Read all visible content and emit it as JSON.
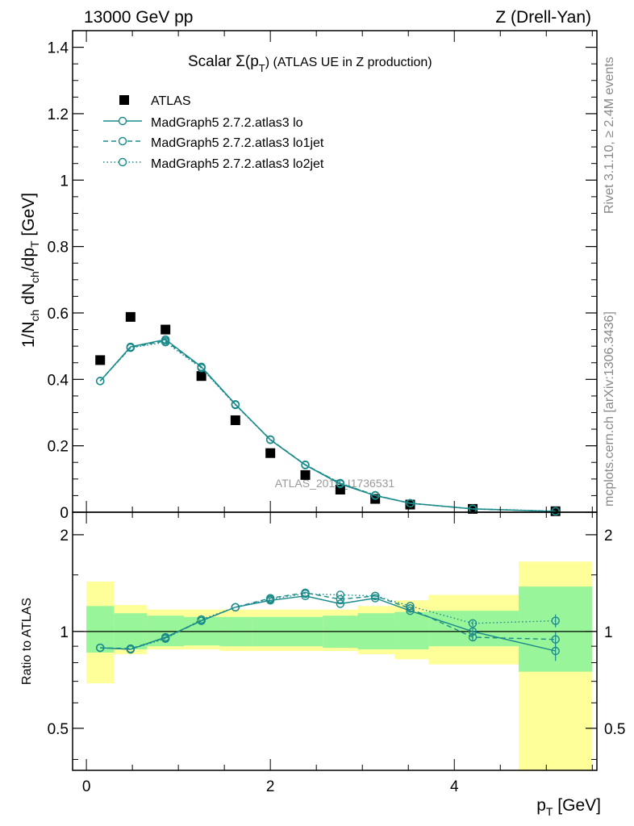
{
  "header": {
    "left": "13000 GeV pp",
    "right": "Z (Drell-Yan)"
  },
  "side": {
    "rivet": "Rivet 3.1.10, ≥ 2.4M events",
    "mcplots": "mcplots.cern.ch [arXiv:1306.3436]"
  },
  "colors": {
    "mc": "#1a8a8a",
    "band_inner": "#99f599",
    "band_outer": "#ffff99",
    "data": "#000000"
  },
  "chart_data": [
    {
      "type": "scatter",
      "panel": "main",
      "title": "Scalar Σ(p_T) (ATLAS UE in Z production)",
      "title_main": "Scalar Σ(p",
      "title_sub": "T",
      "title_rest": ") (ATLAS UE in Z production)",
      "ylabel": "1/N_ch dN_ch/dp_T [GeV]",
      "ylim": [
        0,
        1.45
      ],
      "yticks": [
        0,
        0.2,
        0.4,
        0.6,
        0.8,
        1,
        1.2,
        1.4
      ],
      "ytick_labels": [
        "0",
        "0.2",
        "0.4",
        "0.6",
        "0.8",
        "1",
        "1.2",
        "1.4"
      ],
      "xlim": [
        -0.15,
        5.55
      ],
      "watermark": "ATLAS_2019_I1736531",
      "legend": [
        {
          "label": "ATLAS",
          "style": "data"
        },
        {
          "label": "MadGraph5 2.7.2.atlas3 lo",
          "style": "solid"
        },
        {
          "label": "MadGraph5 2.7.2.atlas3 lo1jet",
          "style": "dashed"
        },
        {
          "label": "MadGraph5 2.7.2.atlas3 lo2jet",
          "style": "dotted"
        }
      ],
      "bin_edges": [
        0,
        0.3,
        0.66,
        1.06,
        1.45,
        1.8,
        2.2,
        2.57,
        2.95,
        3.35,
        3.72,
        4.7,
        5.5
      ],
      "x": [
        0.15,
        0.48,
        0.86,
        1.25,
        1.62,
        2.0,
        2.38,
        2.76,
        3.14,
        3.52,
        4.2,
        5.1
      ],
      "series": [
        {
          "name": "ATLAS",
          "style": "data",
          "values": [
            0.458,
            0.588,
            0.55,
            0.41,
            0.277,
            0.178,
            0.112,
            0.068,
            0.04,
            0.023,
            0.01,
            0.003
          ]
        },
        {
          "name": "MadGraph5 2.7.2.atlas3 lo",
          "style": "solid",
          "values": [
            0.395,
            0.498,
            0.52,
            0.438,
            0.325,
            0.218,
            0.142,
            0.085,
            0.05,
            0.027,
            0.01,
            0.0025
          ]
        },
        {
          "name": "MadGraph5 2.7.2.atlas3 lo1jet",
          "style": "dashed",
          "values": [
            0.395,
            0.496,
            0.516,
            0.436,
            0.324,
            0.219,
            0.143,
            0.087,
            0.051,
            0.027,
            0.0098,
            0.0027
          ]
        },
        {
          "name": "MadGraph5 2.7.2.atlas3 lo2jet",
          "style": "dotted",
          "values": [
            0.395,
            0.495,
            0.512,
            0.434,
            0.323,
            0.218,
            0.142,
            0.088,
            0.051,
            0.027,
            0.0105,
            0.0031
          ]
        }
      ]
    },
    {
      "type": "scatter",
      "panel": "ratio",
      "ylabel": "Ratio to ATLAS",
      "xlabel": "p_T [GeV]",
      "xlabel_main": "p",
      "xlabel_sub": "T",
      "xlabel_rest": " [GeV]",
      "ylim": [
        0.37,
        2.35
      ],
      "yscale": "log",
      "yticks": [
        0.5,
        1,
        2
      ],
      "ytick_labels": [
        "0.5",
        "1",
        "2"
      ],
      "xlim": [
        -0.15,
        5.55
      ],
      "xticks": [
        0,
        2,
        4
      ],
      "xtick_labels": [
        "0",
        "2",
        "4"
      ],
      "band_inner": [
        [
          0.86,
          1.2
        ],
        [
          0.88,
          1.14
        ],
        [
          0.9,
          1.12
        ],
        [
          0.905,
          1.11
        ],
        [
          0.9,
          1.11
        ],
        [
          0.9,
          1.11
        ],
        [
          0.9,
          1.11
        ],
        [
          0.89,
          1.12
        ],
        [
          0.88,
          1.14
        ],
        [
          0.88,
          1.15
        ],
        [
          0.9,
          1.16
        ],
        [
          0.75,
          1.38
        ]
      ],
      "band_outer": [
        [
          0.69,
          1.43
        ],
        [
          0.85,
          1.21
        ],
        [
          0.88,
          1.17
        ],
        [
          0.88,
          1.17
        ],
        [
          0.87,
          1.17
        ],
        [
          0.87,
          1.17
        ],
        [
          0.87,
          1.17
        ],
        [
          0.87,
          1.17
        ],
        [
          0.85,
          1.2
        ],
        [
          0.82,
          1.25
        ],
        [
          0.79,
          1.3
        ],
        [
          0.33,
          1.65
        ]
      ],
      "series": [
        {
          "name": "MadGraph5 2.7.2.atlas3 lo",
          "style": "solid",
          "values": [
            0.89,
            0.88,
            0.96,
            1.08,
            1.19,
            1.25,
            1.29,
            1.22,
            1.27,
            1.16,
            1.0,
            0.87
          ],
          "errors": [
            0,
            0,
            0,
            0,
            0,
            0,
            0,
            0,
            0,
            0,
            0.02,
            0.06
          ]
        },
        {
          "name": "MadGraph5 2.7.2.atlas3 lo1jet",
          "style": "dashed",
          "values": [
            0.89,
            0.885,
            0.955,
            1.08,
            1.19,
            1.27,
            1.32,
            1.26,
            1.29,
            1.18,
            0.96,
            0.945
          ],
          "errors": [
            0,
            0,
            0,
            0,
            0,
            0,
            0,
            0,
            0,
            0,
            0.02,
            0.05
          ]
        },
        {
          "name": "MadGraph5 2.7.2.atlas3 lo2jet",
          "style": "dotted",
          "values": [
            0.89,
            0.88,
            0.95,
            1.09,
            1.19,
            1.26,
            1.31,
            1.3,
            1.29,
            1.2,
            1.06,
            1.08
          ],
          "errors": [
            0,
            0,
            0,
            0,
            0,
            0,
            0,
            0,
            0,
            0,
            0.02,
            0.05
          ]
        }
      ]
    }
  ]
}
